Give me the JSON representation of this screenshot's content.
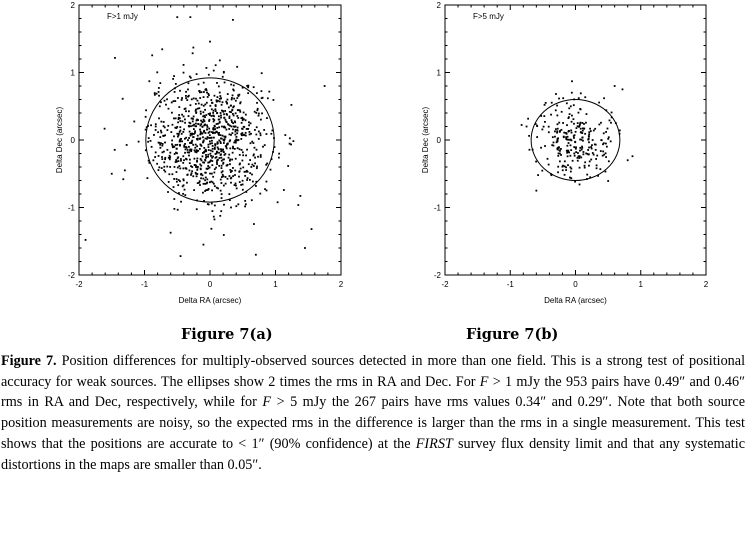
{
  "chart_data": [
    {
      "type": "scatter",
      "annotation": "F>1 mJy",
      "xlabel": "Delta RA (arcsec)",
      "ylabel": "Delta Dec (arcsec)",
      "xlim": [
        -2,
        2
      ],
      "ylim": [
        -2,
        2
      ],
      "xticks": [
        "-2",
        "-1",
        "0",
        "1",
        "2"
      ],
      "yticks": [
        "-2",
        "-1",
        "0",
        "1",
        "2"
      ],
      "ellipse": {
        "rx": 0.98,
        "ry": 0.92
      },
      "n_points": 953,
      "spread": 0.46,
      "outliers": [
        [
          -0.3,
          1.82
        ],
        [
          -0.5,
          1.82
        ],
        [
          0.35,
          1.78
        ],
        [
          -1.3,
          -0.45
        ],
        [
          -1.5,
          -0.5
        ],
        [
          -0.1,
          -1.55
        ],
        [
          -0.45,
          -1.72
        ],
        [
          0.7,
          -1.7
        ],
        [
          -1.9,
          -1.48
        ],
        [
          1.55,
          -1.32
        ],
        [
          1.75,
          0.8
        ],
        [
          1.45,
          -1.6
        ]
      ],
      "grid": false,
      "caption": "Figure 7(a)"
    },
    {
      "type": "scatter",
      "annotation": "F>5 mJy",
      "xlabel": "Delta RA (arcsec)",
      "ylabel": "Delta Dec (arcsec)",
      "xlim": [
        -2,
        2
      ],
      "ylim": [
        -2,
        2
      ],
      "xticks": [
        "-2",
        "-1",
        "0",
        "1",
        "2"
      ],
      "yticks": [
        "-2",
        "-1",
        "0",
        "1",
        "2"
      ],
      "ellipse": {
        "rx": 0.68,
        "ry": 0.6
      },
      "n_points": 267,
      "spread": 0.3,
      "outliers": [
        [
          0.6,
          0.8
        ],
        [
          0.72,
          0.75
        ],
        [
          -0.6,
          -0.75
        ],
        [
          -0.75,
          0.2
        ],
        [
          0.05,
          0.62
        ],
        [
          0.8,
          -0.3
        ]
      ],
      "grid": false,
      "caption": "Figure 7(b)"
    }
  ],
  "caption": {
    "label": "Figure 7.",
    "p1": " Position differences for multiply-observed sources detected in more than one field. This is a strong test of positional accuracy for weak sources. The ellipses show 2 times the rms in RA and Dec. For ",
    "f": "F",
    "p2": " > 1 mJy the 953 pairs have 0.49″ and 0.46″ rms in RA and Dec, respectively, while for ",
    "p3": " > 5 mJy the 267 pairs have rms values 0.34″ and 0.29″. Note that both source position measurements are noisy, so the expected rms in the difference is larger than the rms in a single measurement. This test shows that the positions are accurate to < 1″ (90% confidence) at the ",
    "survey": "FIRST",
    "p4": " survey flux density limit and that any systematic distortions in the maps are smaller than 0.05″."
  }
}
